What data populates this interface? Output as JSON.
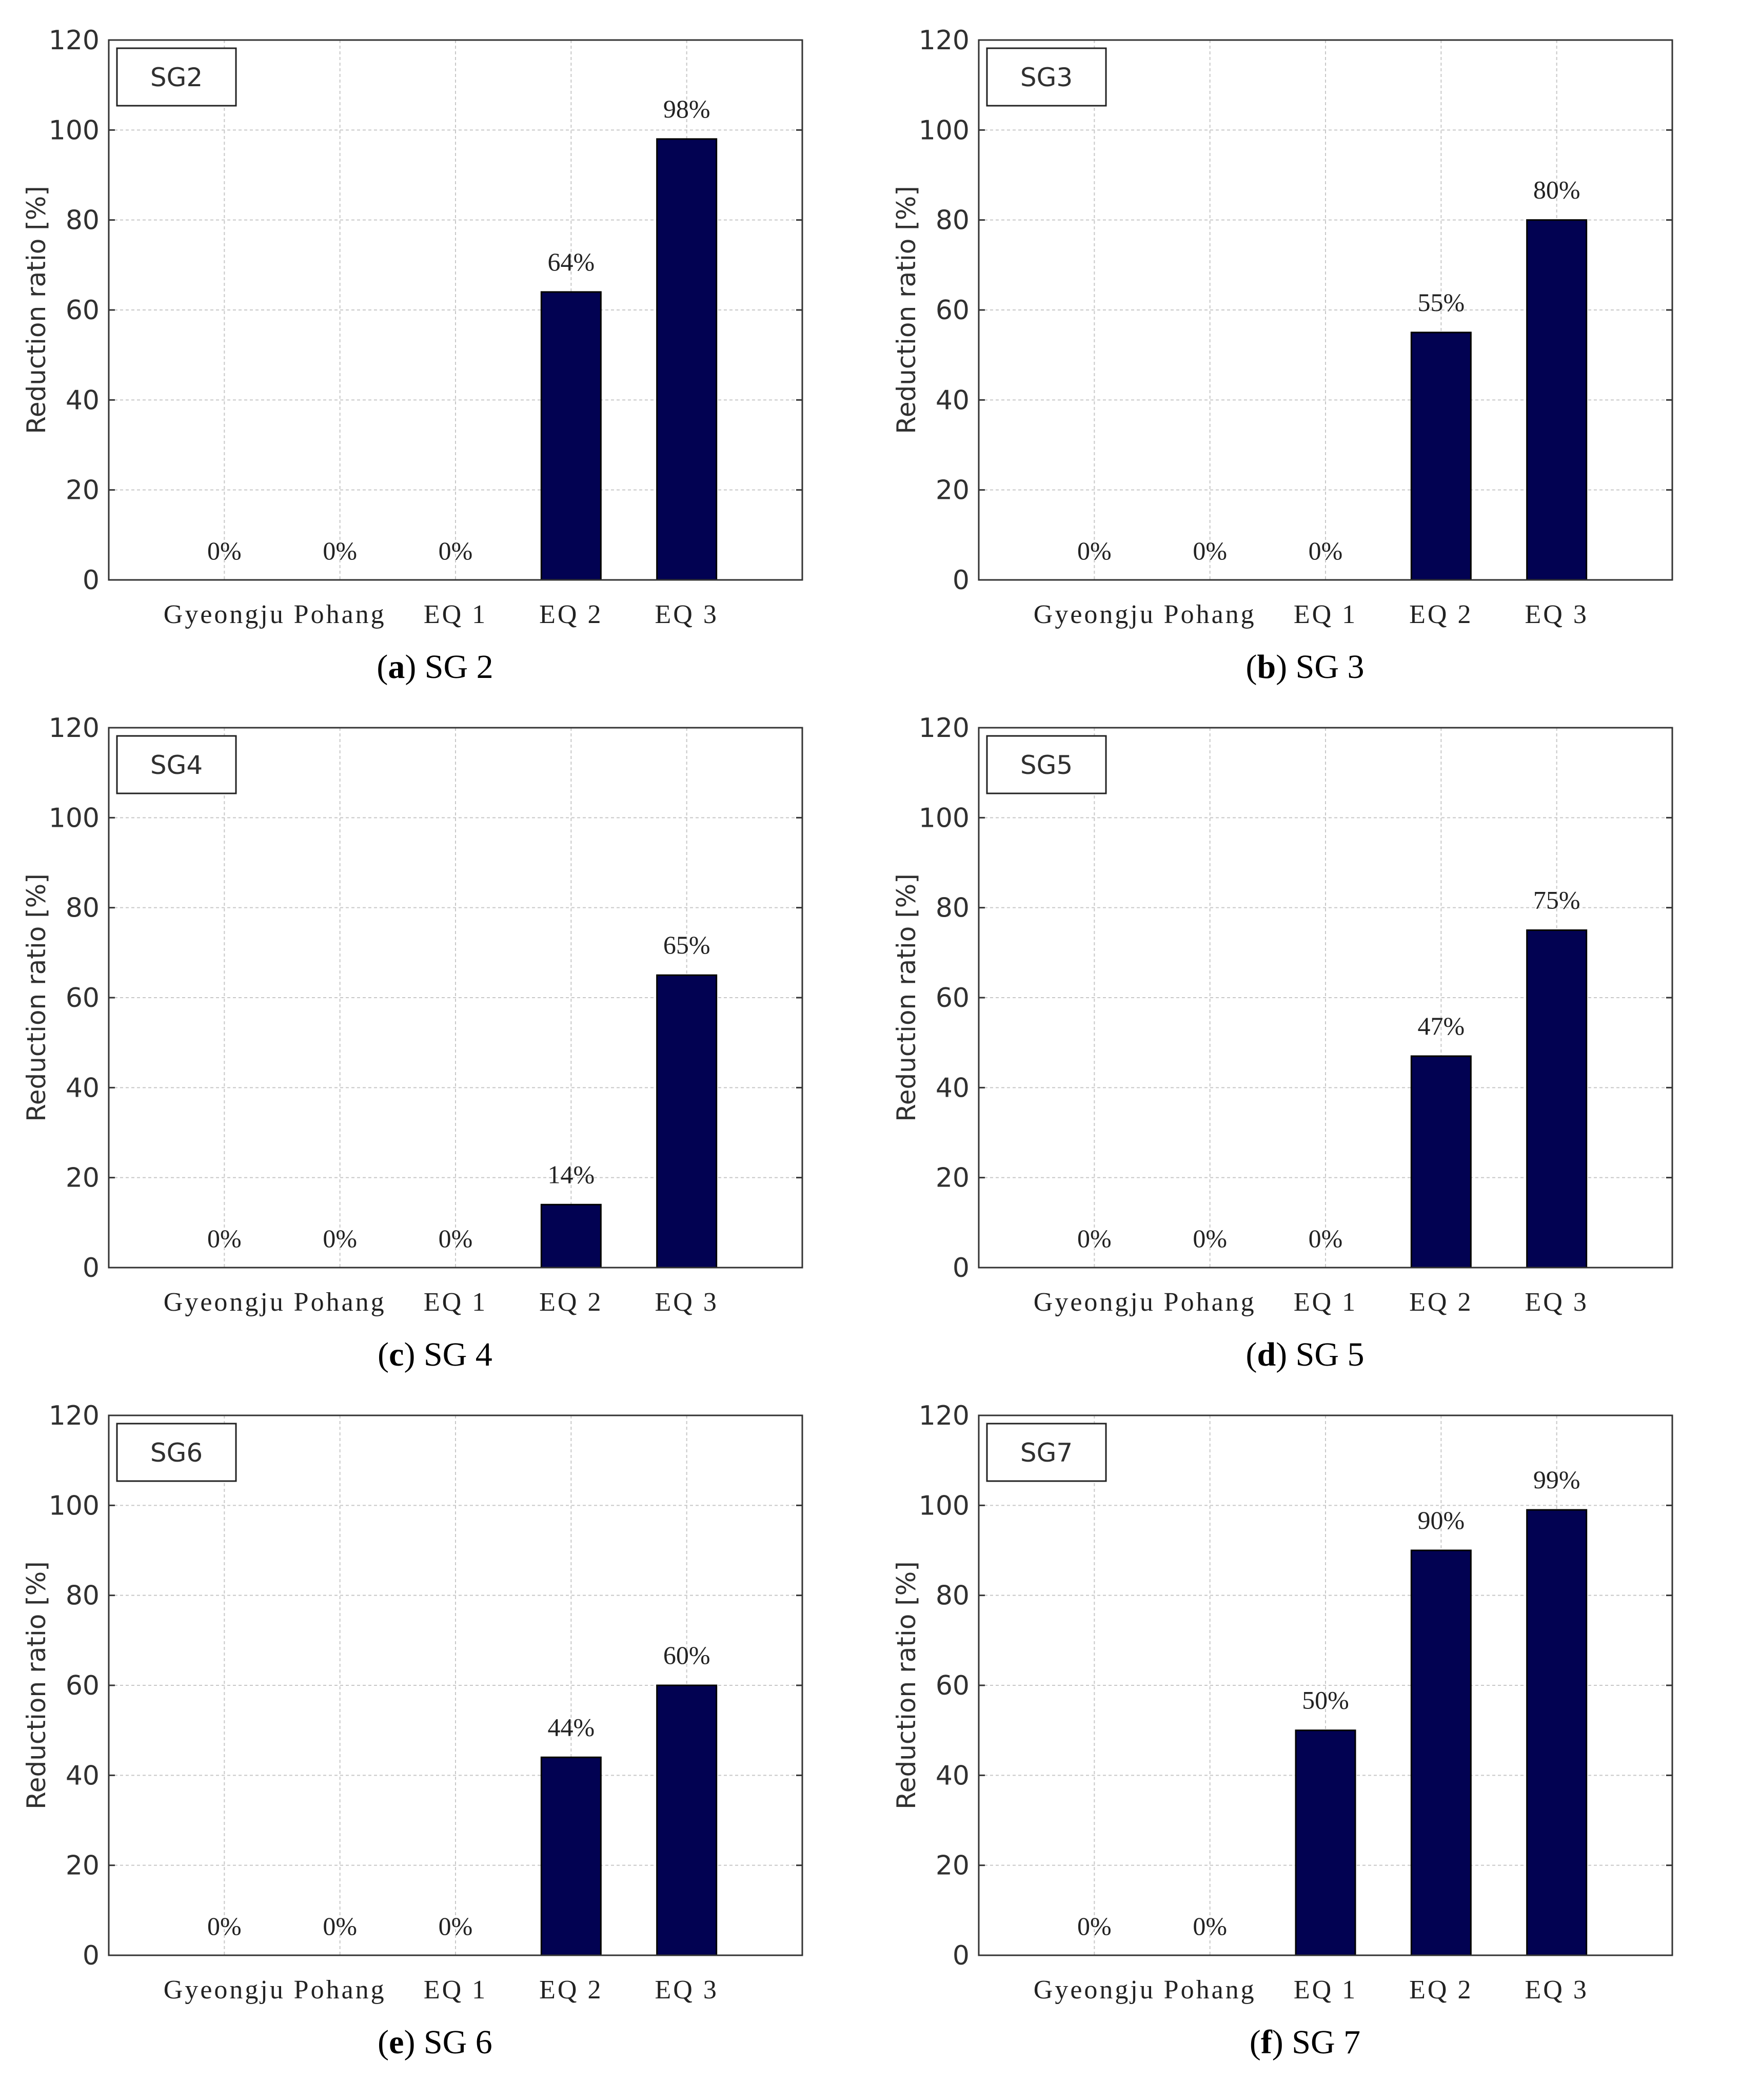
{
  "colors": {
    "bar": "#020252",
    "grid": "#c8c8c8",
    "axis": "#333333"
  },
  "chart_data": [
    {
      "id": "a",
      "type": "bar",
      "title": "SG2",
      "legend": "SG2",
      "caption_letter": "a",
      "caption_text": "SG 2",
      "categories": [
        "Gyeongju",
        "Pohang",
        "EQ 1",
        "EQ 2",
        "EQ 3"
      ],
      "values": [
        0,
        0,
        0,
        64,
        98
      ],
      "data_labels": [
        "0%",
        "0%",
        "0%",
        "64%",
        "98%"
      ],
      "ylabel": "Reduction ratio [%]",
      "ylim": [
        0,
        120
      ],
      "yticks": [
        0,
        20,
        40,
        60,
        80,
        100,
        120
      ],
      "grid": true
    },
    {
      "id": "b",
      "type": "bar",
      "title": "SG3",
      "legend": "SG3",
      "caption_letter": "b",
      "caption_text": "SG 3",
      "categories": [
        "Gyeongju",
        "Pohang",
        "EQ 1",
        "EQ 2",
        "EQ 3"
      ],
      "values": [
        0,
        0,
        0,
        55,
        80
      ],
      "data_labels": [
        "0%",
        "0%",
        "0%",
        "55%",
        "80%"
      ],
      "ylabel": "Reduction ratio [%]",
      "ylim": [
        0,
        120
      ],
      "yticks": [
        0,
        20,
        40,
        60,
        80,
        100,
        120
      ],
      "grid": true
    },
    {
      "id": "c",
      "type": "bar",
      "title": "SG4",
      "legend": "SG4",
      "caption_letter": "c",
      "caption_text": "SG 4",
      "categories": [
        "Gyeongju",
        "Pohang",
        "EQ 1",
        "EQ 2",
        "EQ 3"
      ],
      "values": [
        0,
        0,
        0,
        14,
        65
      ],
      "data_labels": [
        "0%",
        "0%",
        "0%",
        "14%",
        "65%"
      ],
      "ylabel": "Reduction ratio [%]",
      "ylim": [
        0,
        120
      ],
      "yticks": [
        0,
        20,
        40,
        60,
        80,
        100,
        120
      ],
      "grid": true
    },
    {
      "id": "d",
      "type": "bar",
      "title": "SG5",
      "legend": "SG5",
      "caption_letter": "d",
      "caption_text": "SG 5",
      "categories": [
        "Gyeongju",
        "Pohang",
        "EQ 1",
        "EQ 2",
        "EQ 3"
      ],
      "values": [
        0,
        0,
        0,
        47,
        75
      ],
      "data_labels": [
        "0%",
        "0%",
        "0%",
        "47%",
        "75%"
      ],
      "ylabel": "Reduction ratio [%]",
      "ylim": [
        0,
        120
      ],
      "yticks": [
        0,
        20,
        40,
        60,
        80,
        100,
        120
      ],
      "grid": true
    },
    {
      "id": "e",
      "type": "bar",
      "title": "SG6",
      "legend": "SG6",
      "caption_letter": "e",
      "caption_text": "SG 6",
      "categories": [
        "Gyeongju",
        "Pohang",
        "EQ 1",
        "EQ 2",
        "EQ 3"
      ],
      "values": [
        0,
        0,
        0,
        44,
        60
      ],
      "data_labels": [
        "0%",
        "0%",
        "0%",
        "44%",
        "60%"
      ],
      "ylabel": "Reduction ratio [%]",
      "ylim": [
        0,
        120
      ],
      "yticks": [
        0,
        20,
        40,
        60,
        80,
        100,
        120
      ],
      "grid": true
    },
    {
      "id": "f",
      "type": "bar",
      "title": "SG7",
      "legend": "SG7",
      "caption_letter": "f",
      "caption_text": "SG 7",
      "categories": [
        "Gyeongju",
        "Pohang",
        "EQ 1",
        "EQ 2",
        "EQ 3"
      ],
      "values": [
        0,
        0,
        50,
        90,
        99
      ],
      "data_labels": [
        "0%",
        "0%",
        "50%",
        "90%",
        "99%"
      ],
      "ylabel": "Reduction ratio [%]",
      "ylim": [
        0,
        120
      ],
      "yticks": [
        0,
        20,
        40,
        60,
        80,
        100,
        120
      ],
      "grid": true
    }
  ]
}
